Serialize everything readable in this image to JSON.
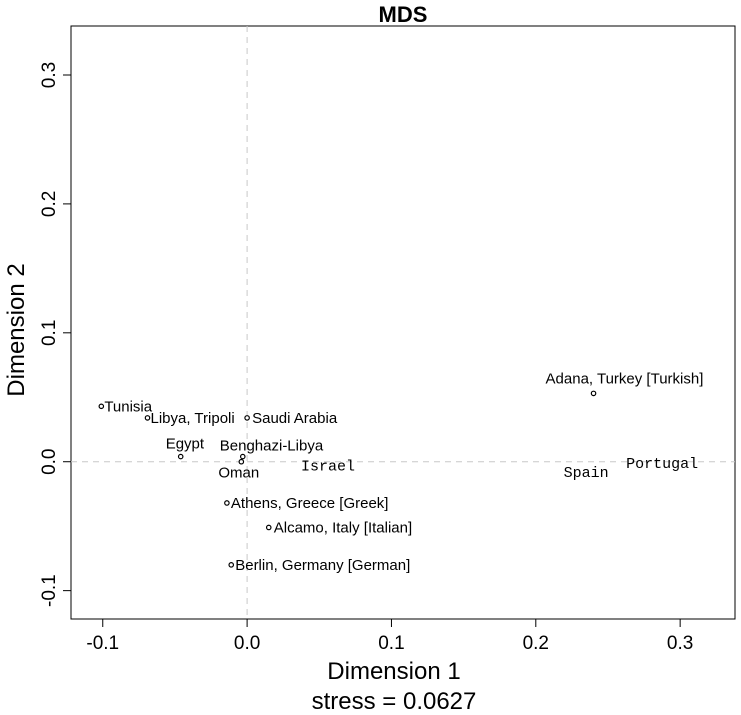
{
  "chart_data": {
    "type": "scatter",
    "title": "MDS",
    "xlabel": "Dimension 1",
    "ylabel": "Dimension 2",
    "subtitle": "stress = 0.0627",
    "xlim": [
      -0.122,
      0.338
    ],
    "ylim": [
      -0.122,
      0.338
    ],
    "xticks": [
      -0.1,
      0.0,
      0.1,
      0.2,
      0.3
    ],
    "xtick_labels": [
      "-0.1",
      "0.0",
      "0.1",
      "0.2",
      "0.3"
    ],
    "yticks": [
      -0.1,
      0.0,
      0.1,
      0.2,
      0.3
    ],
    "ytick_labels": [
      "-0.1",
      "0.0",
      "0.1",
      "0.2",
      "0.3"
    ],
    "reference_lines": {
      "x": 0,
      "y": 0,
      "style": "dashed"
    },
    "grid": false,
    "points": [
      {
        "label": "Tunisia",
        "x": -0.101,
        "y": 0.043,
        "marker": true,
        "font": "sans"
      },
      {
        "label": "Libya, Tripoli",
        "x": -0.069,
        "y": 0.034,
        "marker": true,
        "font": "sans"
      },
      {
        "label": "Saudi Arabia",
        "x": 0.0,
        "y": 0.034,
        "marker": true,
        "font": "sans"
      },
      {
        "label": "Egypt",
        "x": -0.046,
        "y": 0.004,
        "marker": true,
        "font": "sans"
      },
      {
        "label": "Benghazi-Libya",
        "x": -0.003,
        "y": 0.004,
        "marker": true,
        "font": "sans"
      },
      {
        "label": "Oman",
        "x": -0.004,
        "y": 0.0,
        "marker": true,
        "font": "sans"
      },
      {
        "label": "Israel",
        "x": 0.056,
        "y": -0.003,
        "marker": false,
        "font": "mono"
      },
      {
        "label": "Adana, Turkey [Turkish]",
        "x": 0.24,
        "y": 0.053,
        "marker": true,
        "font": "sans"
      },
      {
        "label": "Spain",
        "x": 0.238,
        "y": -0.008,
        "marker": false,
        "font": "mono"
      },
      {
        "label": "Portugal",
        "x": 0.291,
        "y": -0.001,
        "marker": false,
        "font": "mono"
      },
      {
        "label": "Athens, Greece [Greek]",
        "x": -0.014,
        "y": -0.032,
        "marker": true,
        "font": "sans"
      },
      {
        "label": "Alcamo, Italy [Italian]",
        "x": 0.015,
        "y": -0.051,
        "marker": true,
        "font": "sans"
      },
      {
        "label": "Berlin, Germany [German]",
        "x": -0.011,
        "y": -0.08,
        "marker": true,
        "font": "sans"
      }
    ]
  }
}
